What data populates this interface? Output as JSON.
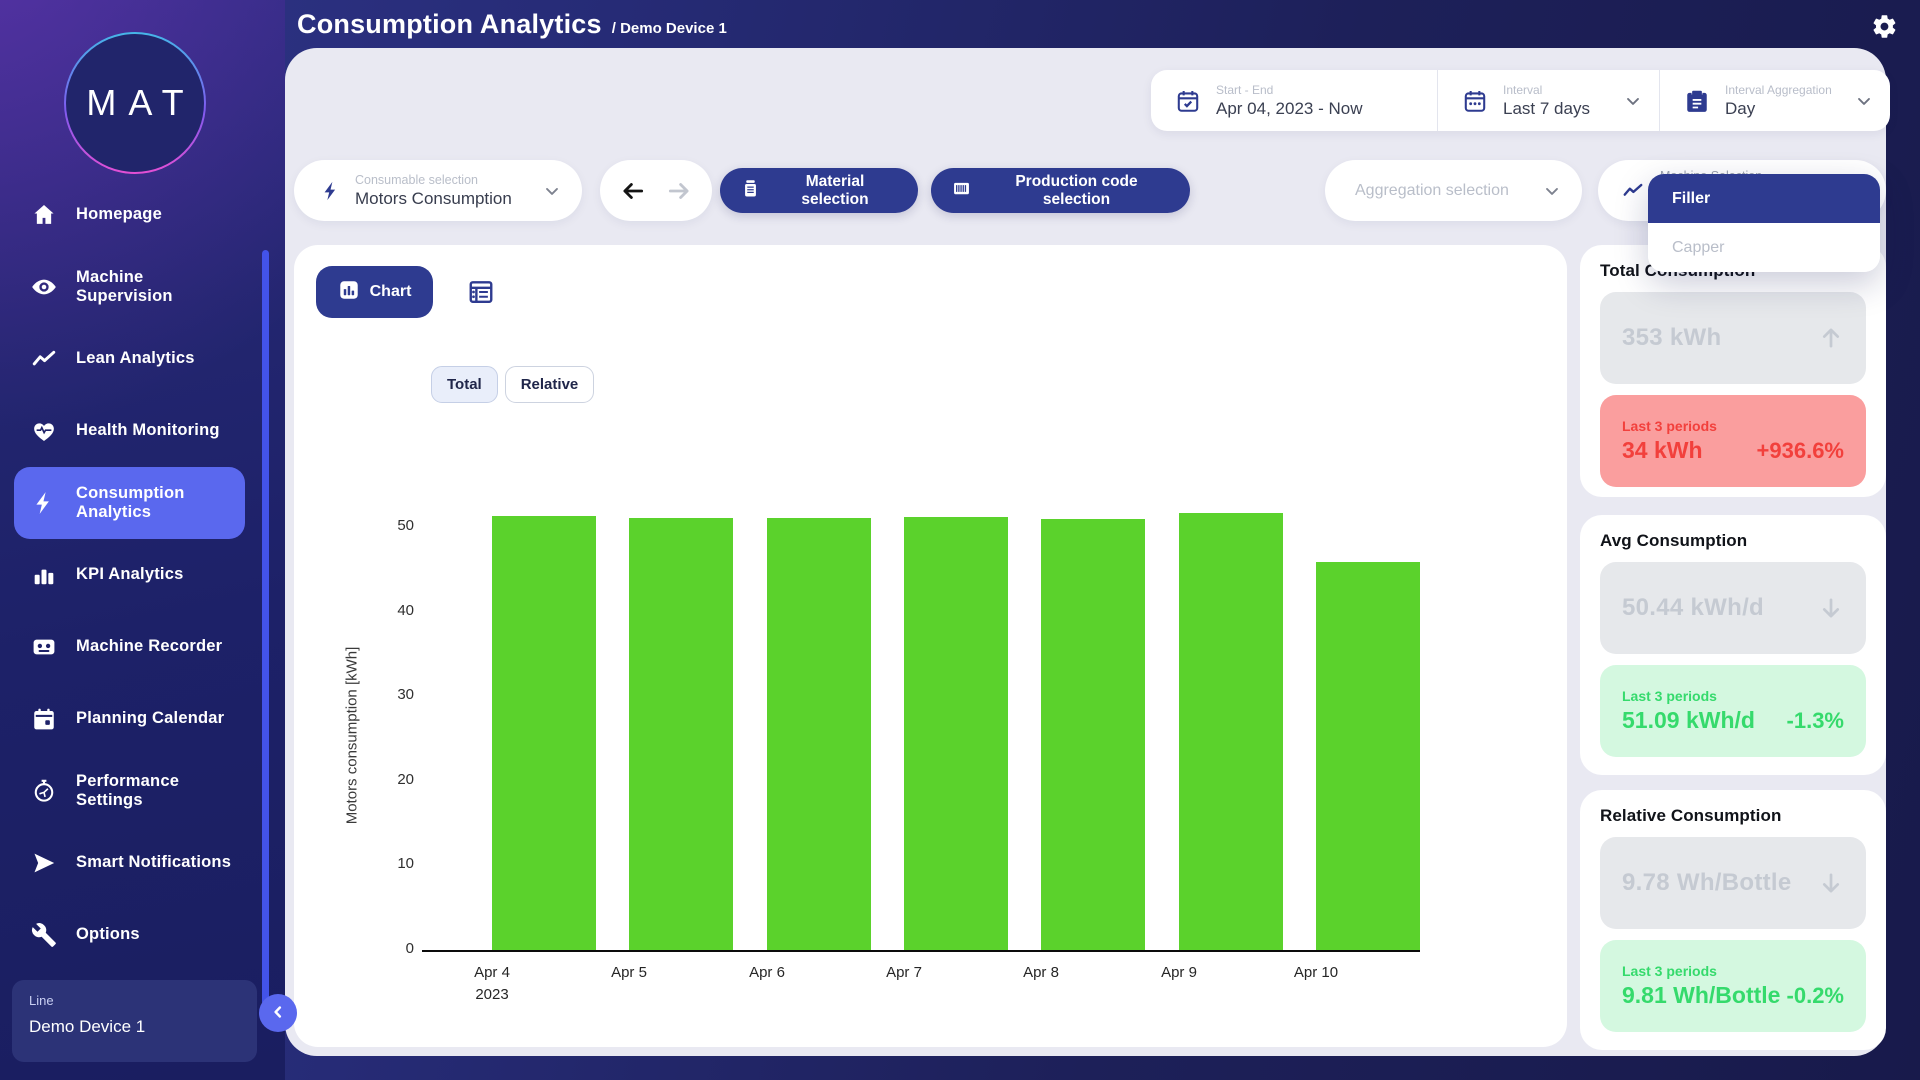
{
  "app": {
    "title": "Consumption Analytics",
    "breadcrumb": "/ Demo Device 1",
    "logo": "MAT"
  },
  "sidebar": {
    "items": [
      {
        "label": "Homepage",
        "icon": "home"
      },
      {
        "label": "Machine Supervision",
        "icon": "eye"
      },
      {
        "label": "Lean Analytics",
        "icon": "trend"
      },
      {
        "label": "Health Monitoring",
        "icon": "heart"
      },
      {
        "label": "Consumption Analytics",
        "icon": "bolt",
        "active": true
      },
      {
        "label": "KPI Analytics",
        "icon": "bars"
      },
      {
        "label": "Machine Recorder",
        "icon": "recorder"
      },
      {
        "label": "Planning Calendar",
        "icon": "calendar"
      },
      {
        "label": "Performance Settings",
        "icon": "stopwatch"
      },
      {
        "label": "Smart Notifications",
        "icon": "send"
      },
      {
        "label": "Options",
        "icon": "wrench"
      }
    ],
    "device_card": {
      "label": "Line",
      "value": "Demo Device 1"
    }
  },
  "controls": {
    "date_range": {
      "label": "Start - End",
      "value": "Apr 04, 2023 - Now"
    },
    "interval": {
      "label": "Interval",
      "value": "Last 7 days"
    },
    "aggregation": {
      "label": "Interval Aggregation",
      "value": "Day"
    }
  },
  "filters": {
    "consumable": {
      "label": "Consumable selection",
      "value": "Motors Consumption"
    },
    "material_label": "Material selection",
    "production_label": "Production code selection",
    "aggregation_placeholder": "Aggregation selection",
    "machine": {
      "label": "Machine Selection",
      "options": [
        {
          "label": "Filler",
          "selected": true
        },
        {
          "label": "Capper",
          "selected": false
        }
      ]
    }
  },
  "chart": {
    "tab_label": "Chart",
    "toggle": [
      {
        "label": "Total",
        "active": true
      },
      {
        "label": "Relative",
        "active": false
      }
    ]
  },
  "chart_data": {
    "type": "bar",
    "categories": [
      [
        "Apr 4",
        "2023"
      ],
      [
        "Apr 5"
      ],
      [
        "Apr 6"
      ],
      [
        "Apr 7"
      ],
      [
        "Apr 8"
      ],
      [
        "Apr 9"
      ],
      [
        "Apr 10"
      ]
    ],
    "values": [
      51.3,
      51.1,
      51.1,
      51.2,
      50.9,
      51.7,
      45.9
    ],
    "title": "",
    "xlabel": "",
    "ylabel": "Motors consumption [kWh]",
    "yticks": [
      0,
      10,
      20,
      30,
      40,
      50
    ],
    "ylim": [
      0,
      55
    ],
    "bar_color": "#5bd22c",
    "grid": false,
    "legend": false
  },
  "stats": [
    {
      "title": "Total Consumption",
      "value": "353 kWh",
      "trend": "up",
      "period_label": "Last 3 periods",
      "period_value": "34 kWh",
      "period_change": "+936.6%",
      "sentiment": "red"
    },
    {
      "title": "Avg Consumption",
      "value": "50.44 kWh/d",
      "trend": "down",
      "period_label": "Last 3 periods",
      "period_value": "51.09 kWh/d",
      "period_change": "-1.3%",
      "sentiment": "green"
    },
    {
      "title": "Relative Consumption",
      "value": "9.78 Wh/Bottle",
      "trend": "down",
      "period_label": "Last 3 periods",
      "period_value": "9.81 Wh/Bottle",
      "period_change": "-0.2%",
      "sentiment": "green"
    }
  ],
  "colors": {
    "accent": "#2e3b90",
    "active_nav": "#5a68ee",
    "bar": "#5bd22c",
    "red_bg": "#fa9e9e",
    "red_text": "#f2403c",
    "green_bg": "#d4f8e0",
    "green_text": "#35da6c"
  }
}
